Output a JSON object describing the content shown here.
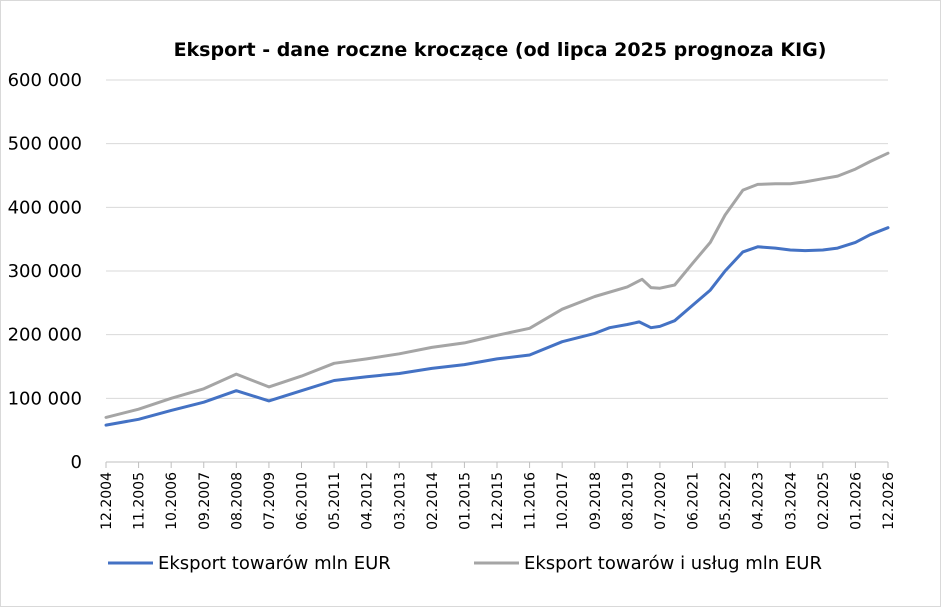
{
  "chart_data": {
    "type": "line",
    "title": "Eksport - dane roczne kroczące (od lipca 2025 prognoza KIG)",
    "xlabel": "",
    "ylabel": "",
    "ylim": [
      0,
      600000
    ],
    "yticks": [
      "0",
      "100 000",
      "200 000",
      "300 000",
      "400 000",
      "500 000",
      "600 000"
    ],
    "xticks": [
      "12.2004",
      "11.2005",
      "10.2006",
      "09.2007",
      "08.2008",
      "07.2009",
      "06.2010",
      "05.2011",
      "04.2012",
      "03.2013",
      "02.2014",
      "01.2015",
      "12.2015",
      "11.2016",
      "10.2017",
      "09.2018",
      "08.2019",
      "07.2020",
      "06.2021",
      "05.2022",
      "04.2023",
      "03.2024",
      "02.2025",
      "01.2026",
      "12.2026"
    ],
    "grid": "horizontal",
    "legend_position": "bottom",
    "series": [
      {
        "name": "Eksport towarów mln EUR",
        "color": "#4472c4",
        "points": [
          [
            "12.2004",
            58000
          ],
          [
            "11.2005",
            67000
          ],
          [
            "10.2006",
            81000
          ],
          [
            "09.2007",
            94000
          ],
          [
            "08.2008",
            112000
          ],
          [
            "07.2009",
            96000
          ],
          [
            "06.2010",
            112000
          ],
          [
            "05.2011",
            128000
          ],
          [
            "04.2012",
            134000
          ],
          [
            "03.2013",
            139000
          ],
          [
            "02.2014",
            147000
          ],
          [
            "01.2015",
            153000
          ],
          [
            "12.2015",
            162000
          ],
          [
            "11.2016",
            168000
          ],
          [
            "10.2017",
            189000
          ],
          [
            "09.2018",
            202000
          ],
          [
            "02.2019",
            211000
          ],
          [
            "08.2019",
            216000
          ],
          [
            "12.2019",
            220000
          ],
          [
            "04.2020",
            211000
          ],
          [
            "07.2020",
            213000
          ],
          [
            "12.2020",
            222000
          ],
          [
            "06.2021",
            246000
          ],
          [
            "12.2021",
            270000
          ],
          [
            "05.2022",
            300000
          ],
          [
            "11.2022",
            330000
          ],
          [
            "04.2023",
            338000
          ],
          [
            "10.2023",
            336000
          ],
          [
            "03.2024",
            333000
          ],
          [
            "08.2024",
            332000
          ],
          [
            "02.2025",
            333000
          ],
          [
            "07.2025",
            336000
          ],
          [
            "01.2026",
            345000
          ],
          [
            "06.2026",
            357000
          ],
          [
            "12.2026",
            368000
          ]
        ]
      },
      {
        "name": "Eksport towarów i usług mln EUR",
        "color": "#a5a5a5",
        "points": [
          [
            "12.2004",
            70000
          ],
          [
            "11.2005",
            83000
          ],
          [
            "10.2006",
            100000
          ],
          [
            "09.2007",
            115000
          ],
          [
            "08.2008",
            138000
          ],
          [
            "07.2009",
            118000
          ],
          [
            "06.2010",
            135000
          ],
          [
            "05.2011",
            155000
          ],
          [
            "04.2012",
            162000
          ],
          [
            "03.2013",
            170000
          ],
          [
            "02.2014",
            180000
          ],
          [
            "01.2015",
            187000
          ],
          [
            "12.2015",
            199000
          ],
          [
            "11.2016",
            210000
          ],
          [
            "10.2017",
            240000
          ],
          [
            "09.2018",
            260000
          ],
          [
            "08.2019",
            275000
          ],
          [
            "01.2020",
            287000
          ],
          [
            "04.2020",
            274000
          ],
          [
            "07.2020",
            273000
          ],
          [
            "12.2020",
            278000
          ],
          [
            "06.2021",
            312000
          ],
          [
            "12.2021",
            345000
          ],
          [
            "05.2022",
            388000
          ],
          [
            "11.2022",
            427000
          ],
          [
            "04.2023",
            436000
          ],
          [
            "10.2023",
            437000
          ],
          [
            "03.2024",
            437000
          ],
          [
            "08.2024",
            440000
          ],
          [
            "02.2025",
            445000
          ],
          [
            "07.2025",
            449000
          ],
          [
            "01.2026",
            460000
          ],
          [
            "06.2026",
            472000
          ],
          [
            "12.2026",
            485000
          ]
        ]
      }
    ]
  }
}
